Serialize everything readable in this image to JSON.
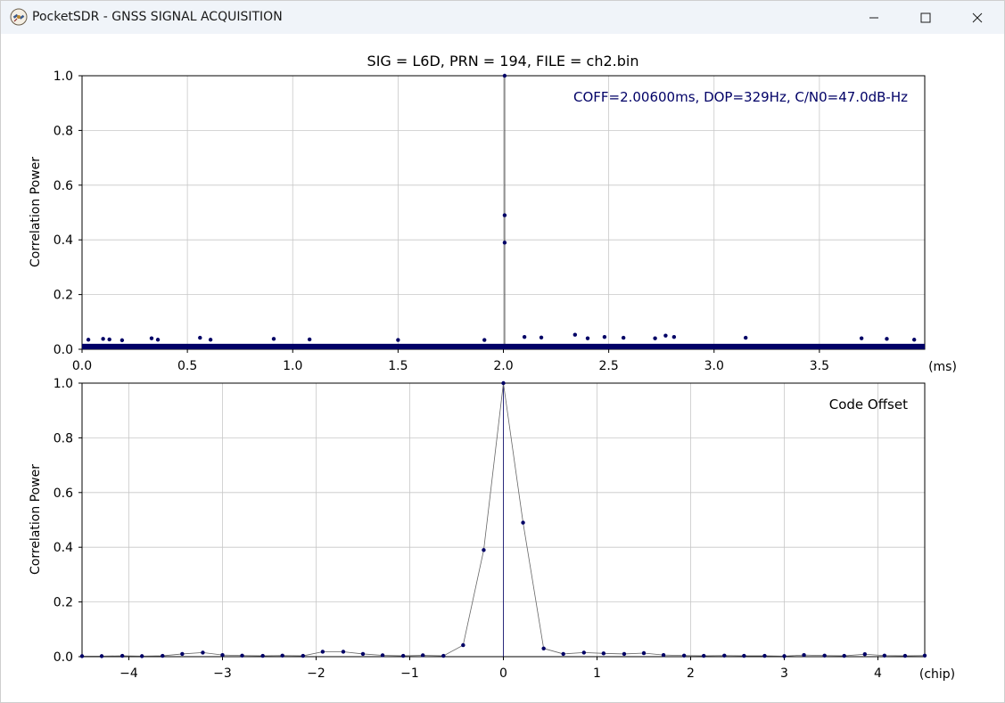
{
  "window": {
    "title": "PocketSDR - GNSS SIGNAL ACQUISITION",
    "icons": {
      "app": "pocketsdr-satellite-icon",
      "minimize": "minimize-icon",
      "maximize": "maximize-icon",
      "close": "close-icon"
    }
  },
  "colors": {
    "series": "#000066",
    "line": "#444444",
    "grid": "#c8c8c8",
    "annotation": "#000066",
    "titlebar": "#f0f4f9"
  },
  "chart_data": [
    {
      "type": "scatter",
      "title": "SIG = L6D, PRN = 194, FILE = ch2.bin",
      "xlabel": "(ms)",
      "ylabel": "Correlation Power",
      "annotation": "COFF=2.00600ms, DOP=329Hz, C/N0=47.0dB-Hz",
      "xlim": [
        0.0,
        4.0
      ],
      "ylim": [
        0.0,
        1.0
      ],
      "xticks": [
        0.0,
        0.5,
        1.0,
        1.5,
        2.0,
        2.5,
        3.0,
        3.5
      ],
      "xtick_labels": [
        "0.0",
        "0.5",
        "1.0",
        "1.5",
        "2.0",
        "2.5",
        "3.0",
        "3.5"
      ],
      "yticks": [
        0.0,
        0.2,
        0.4,
        0.6,
        0.8,
        1.0
      ],
      "ytick_labels": [
        "0.0",
        "0.2",
        "0.4",
        "0.6",
        "0.8",
        "1.0"
      ],
      "grid": true,
      "peak_line_x": 2.006,
      "noise_floor": 0.02,
      "points": [
        {
          "x": 2.006,
          "y": 1.0
        },
        {
          "x": 2.006,
          "y": 0.49
        },
        {
          "x": 2.006,
          "y": 0.39
        },
        {
          "x": 0.03,
          "y": 0.035
        },
        {
          "x": 0.1,
          "y": 0.038
        },
        {
          "x": 0.13,
          "y": 0.036
        },
        {
          "x": 0.19,
          "y": 0.033
        },
        {
          "x": 0.33,
          "y": 0.04
        },
        {
          "x": 0.36,
          "y": 0.035
        },
        {
          "x": 0.56,
          "y": 0.042
        },
        {
          "x": 0.61,
          "y": 0.035
        },
        {
          "x": 0.91,
          "y": 0.038
        },
        {
          "x": 1.08,
          "y": 0.036
        },
        {
          "x": 1.5,
          "y": 0.034
        },
        {
          "x": 1.91,
          "y": 0.034
        },
        {
          "x": 2.1,
          "y": 0.045
        },
        {
          "x": 2.18,
          "y": 0.043
        },
        {
          "x": 2.34,
          "y": 0.053
        },
        {
          "x": 2.4,
          "y": 0.04
        },
        {
          "x": 2.48,
          "y": 0.045
        },
        {
          "x": 2.57,
          "y": 0.042
        },
        {
          "x": 2.72,
          "y": 0.04
        },
        {
          "x": 2.77,
          "y": 0.05
        },
        {
          "x": 2.81,
          "y": 0.045
        },
        {
          "x": 3.15,
          "y": 0.042
        },
        {
          "x": 3.7,
          "y": 0.04
        },
        {
          "x": 3.82,
          "y": 0.038
        },
        {
          "x": 3.95,
          "y": 0.035
        }
      ]
    },
    {
      "type": "line",
      "title": "",
      "xlabel": "(chip)",
      "ylabel": "Correlation Power",
      "annotation": "Code Offset",
      "xlim": [
        -4.5,
        4.5
      ],
      "ylim": [
        0.0,
        1.0
      ],
      "xticks": [
        -4,
        -3,
        -2,
        -1,
        0,
        1,
        2,
        3,
        4
      ],
      "xtick_labels": [
        "−4",
        "−3",
        "−2",
        "−1",
        "0",
        "1",
        "2",
        "3",
        "4"
      ],
      "yticks": [
        0.0,
        0.2,
        0.4,
        0.6,
        0.8,
        1.0
      ],
      "ytick_labels": [
        "0.0",
        "0.2",
        "0.4",
        "0.6",
        "0.8",
        "1.0"
      ],
      "grid": true,
      "center_line_x": 0,
      "x": [
        -4.5,
        -4.29,
        -4.07,
        -3.86,
        -3.64,
        -3.43,
        -3.21,
        -3.0,
        -2.79,
        -2.57,
        -2.36,
        -2.14,
        -1.93,
        -1.71,
        -1.5,
        -1.29,
        -1.07,
        -0.86,
        -0.64,
        -0.43,
        -0.21,
        0.0,
        0.21,
        0.43,
        0.64,
        0.86,
        1.07,
        1.29,
        1.5,
        1.71,
        1.93,
        2.14,
        2.36,
        2.57,
        2.79,
        3.0,
        3.21,
        3.43,
        3.64,
        3.86,
        4.07,
        4.29,
        4.5
      ],
      "y": [
        0.002,
        0.002,
        0.003,
        0.002,
        0.003,
        0.01,
        0.015,
        0.006,
        0.004,
        0.003,
        0.004,
        0.003,
        0.018,
        0.018,
        0.01,
        0.005,
        0.003,
        0.005,
        0.003,
        0.042,
        0.39,
        1.0,
        0.49,
        0.03,
        0.01,
        0.015,
        0.012,
        0.01,
        0.013,
        0.006,
        0.004,
        0.003,
        0.004,
        0.003,
        0.003,
        0.002,
        0.006,
        0.004,
        0.003,
        0.009,
        0.004,
        0.003,
        0.004
      ]
    }
  ]
}
